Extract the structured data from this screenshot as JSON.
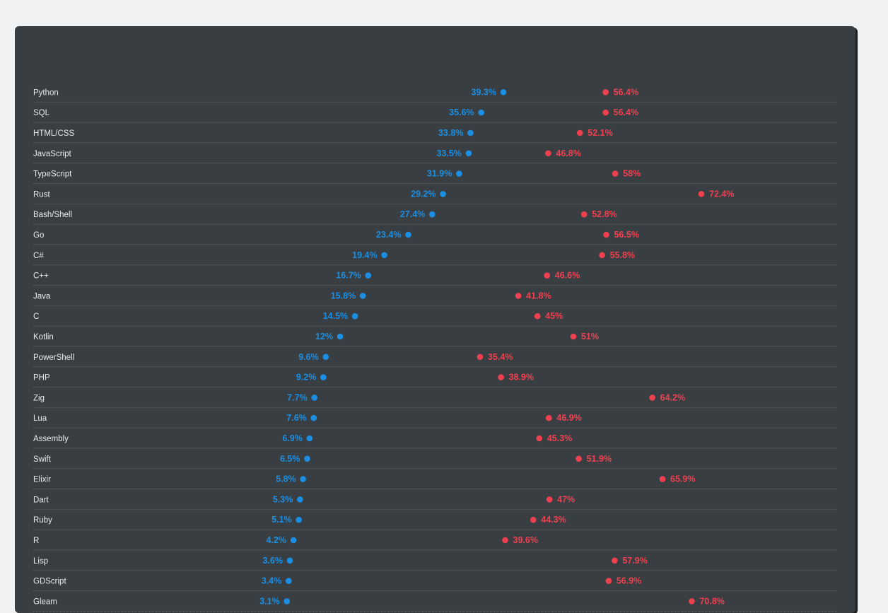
{
  "chart_data": {
    "type": "dumbbell",
    "title": "",
    "xlabel": "",
    "ylabel": "",
    "xlim": [
      0,
      100
    ],
    "colors": {
      "start": "#1a8fe3",
      "end": "#f0404f",
      "label_text": "#e8eaec",
      "divider": "#62676c"
    },
    "rows": [
      {
        "label": "Python",
        "start": 39.3,
        "end": 56.4
      },
      {
        "label": "SQL",
        "start": 35.6,
        "end": 56.4
      },
      {
        "label": "HTML/CSS",
        "start": 33.8,
        "end": 52.1
      },
      {
        "label": "JavaScript",
        "start": 33.5,
        "end": 46.8
      },
      {
        "label": "TypeScript",
        "start": 31.9,
        "end": 58
      },
      {
        "label": "Rust",
        "start": 29.2,
        "end": 72.4
      },
      {
        "label": "Bash/Shell",
        "start": 27.4,
        "end": 52.8
      },
      {
        "label": "Go",
        "start": 23.4,
        "end": 56.5
      },
      {
        "label": "C#",
        "start": 19.4,
        "end": 55.8
      },
      {
        "label": "C++",
        "start": 16.7,
        "end": 46.6
      },
      {
        "label": "Java",
        "start": 15.8,
        "end": 41.8
      },
      {
        "label": "C",
        "start": 14.5,
        "end": 45
      },
      {
        "label": "Kotlin",
        "start": 12,
        "end": 51
      },
      {
        "label": "PowerShell",
        "start": 9.6,
        "end": 35.4
      },
      {
        "label": "PHP",
        "start": 9.2,
        "end": 38.9
      },
      {
        "label": "Zig",
        "start": 7.7,
        "end": 64.2
      },
      {
        "label": "Lua",
        "start": 7.6,
        "end": 46.9
      },
      {
        "label": "Assembly",
        "start": 6.9,
        "end": 45.3
      },
      {
        "label": "Swift",
        "start": 6.5,
        "end": 51.9
      },
      {
        "label": "Elixir",
        "start": 5.8,
        "end": 65.9
      },
      {
        "label": "Dart",
        "start": 5.3,
        "end": 47
      },
      {
        "label": "Ruby",
        "start": 5.1,
        "end": 44.3
      },
      {
        "label": "R",
        "start": 4.2,
        "end": 39.6
      },
      {
        "label": "Lisp",
        "start": 3.6,
        "end": 57.9
      },
      {
        "label": "GDScript",
        "start": 3.4,
        "end": 56.9
      },
      {
        "label": "Gleam",
        "start": 3.1,
        "end": 70.8
      }
    ]
  }
}
